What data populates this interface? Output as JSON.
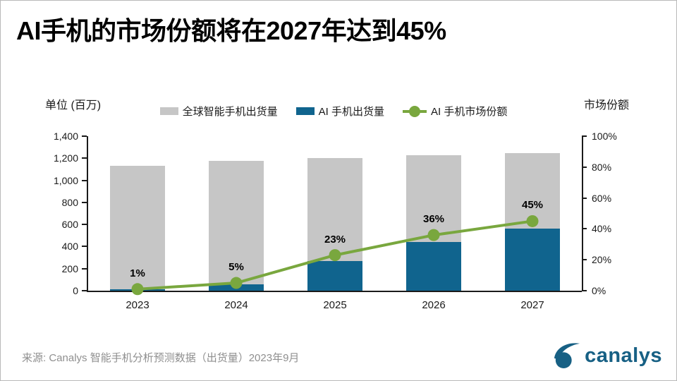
{
  "title": "AI手机的市场份额将在2027年达到45%",
  "axis_unit_left": "单位 (百万)",
  "axis_unit_right": "市场份额",
  "source": "来源: Canalys 智能手机分析预测数据（出货量）2023年9月",
  "logo": {
    "text": "canalys",
    "color": "#176084"
  },
  "colors": {
    "gray_bar": "#c6c6c6",
    "blue_bar": "#10648e",
    "green_line": "#79a73e",
    "axis": "#1a1a1a",
    "source_text": "#8f8f8f"
  },
  "chart_data": {
    "type": "bar",
    "subtype": "bar+line combo, dual axis",
    "categories": [
      "2023",
      "2024",
      "2025",
      "2026",
      "2027"
    ],
    "series": [
      {
        "name": "全球智能手机出货量",
        "type": "bar",
        "axis": "left",
        "color": "#c6c6c6",
        "values": [
          1130,
          1175,
          1200,
          1230,
          1245
        ]
      },
      {
        "name": "AI 手机出货量",
        "type": "bar",
        "axis": "left",
        "color": "#10648e",
        "values": [
          12,
          60,
          270,
          440,
          560
        ]
      },
      {
        "name": "AI 手机市场份额",
        "type": "line",
        "axis": "right",
        "color": "#79a73e",
        "values": [
          1,
          5,
          23,
          36,
          45
        ],
        "point_labels": [
          "1%",
          "5%",
          "23%",
          "36%",
          "45%"
        ]
      }
    ],
    "left_axis": {
      "min": 0,
      "max": 1400,
      "step": 200,
      "tick_labels": [
        "0",
        "200",
        "400",
        "600",
        "800",
        "1,000",
        "1,200",
        "1,400"
      ]
    },
    "right_axis": {
      "min": 0,
      "max": 100,
      "step": 20,
      "tick_labels": [
        "0%",
        "20%",
        "40%",
        "60%",
        "80%",
        "100%"
      ]
    },
    "legend_position": "top-center",
    "grid": false
  }
}
